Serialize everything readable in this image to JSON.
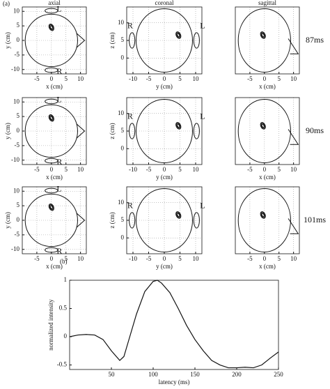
{
  "panels": {
    "a": "(a)",
    "b": "(b)"
  },
  "chart_data": [
    {
      "type": "axial-head",
      "title": "axial",
      "xlabel": "x (cm)",
      "ylabel": "y (cm)",
      "xlim": [
        -10,
        12
      ],
      "ylim": [
        -11.5,
        11.5
      ],
      "xticks": [
        -5,
        0,
        5,
        10
      ],
      "yticks": [
        -10,
        -5,
        0,
        5,
        10
      ],
      "marker_labels": [
        "L",
        "R"
      ],
      "x": [
        0
      ],
      "values": [
        4.5
      ]
    },
    {
      "type": "coronal-head",
      "title": "coronal",
      "xlabel": "y (cm)",
      "ylabel": "z (cm)",
      "xlim": [
        -12,
        12
      ],
      "ylim": [
        -4.5,
        14.5
      ],
      "xticks": [
        -10,
        -5,
        0,
        5,
        10
      ],
      "yticks": [
        0,
        5,
        10
      ],
      "marker_labels": [
        "L",
        "R"
      ],
      "x": [
        4.5
      ],
      "values": [
        6.5
      ]
    },
    {
      "type": "sagittal-head",
      "title": "sagittal",
      "xlabel": "x (cm)",
      "xlim": [
        -10,
        12
      ],
      "ylim": [
        -4.5,
        14.5
      ],
      "xticks": [
        -5,
        0,
        5,
        10
      ],
      "annotation": "87ms",
      "x": [
        -0.5
      ],
      "values": [
        6.5
      ]
    },
    {
      "type": "axial-head",
      "xlabel": "x (cm)",
      "ylabel": "y (cm)",
      "xlim": [
        -10,
        12
      ],
      "ylim": [
        -11.5,
        11.5
      ],
      "xticks": [
        -5,
        0,
        5,
        10
      ],
      "yticks": [
        -10,
        -5,
        0,
        5,
        10
      ],
      "marker_labels": [
        "L",
        "R"
      ],
      "x": [
        0
      ],
      "values": [
        4.5
      ]
    },
    {
      "type": "coronal-head",
      "xlabel": "y (cm)",
      "ylabel": "z (cm)",
      "xlim": [
        -12,
        12
      ],
      "ylim": [
        -4.5,
        14.5
      ],
      "xticks": [
        -10,
        -5,
        0,
        5,
        10
      ],
      "yticks": [
        0,
        5,
        10
      ],
      "marker_labels": [
        "L",
        "R"
      ],
      "x": [
        4.5
      ],
      "values": [
        6.5
      ]
    },
    {
      "type": "sagittal-head",
      "xlabel": "x (cm)",
      "xlim": [
        -10,
        12
      ],
      "ylim": [
        -4.5,
        14.5
      ],
      "xticks": [
        -5,
        0,
        5,
        10
      ],
      "annotation": "90ms",
      "x": [
        -0.5
      ],
      "values": [
        6.5
      ]
    },
    {
      "type": "axial-head",
      "xlabel": "x (cm)",
      "ylabel": "y (cm)",
      "xlim": [
        -10,
        12
      ],
      "ylim": [
        -11.5,
        11.5
      ],
      "xticks": [
        -5,
        0,
        5,
        10
      ],
      "yticks": [
        -10,
        -5,
        0,
        5,
        10
      ],
      "marker_labels": [
        "L",
        "R"
      ],
      "x": [
        0
      ],
      "values": [
        4.5
      ]
    },
    {
      "type": "coronal-head",
      "xlabel": "y (cm)",
      "ylabel": "z (cm)",
      "xlim": [
        -12,
        12
      ],
      "ylim": [
        -4.5,
        14.5
      ],
      "xticks": [
        -10,
        -5,
        0,
        5,
        10
      ],
      "yticks": [
        0,
        5,
        10
      ],
      "marker_labels": [
        "L",
        "R"
      ],
      "x": [
        4.5
      ],
      "values": [
        6.5
      ]
    },
    {
      "type": "sagittal-head",
      "xlabel": "x (cm)",
      "xlim": [
        -10,
        12
      ],
      "ylim": [
        -4.5,
        14.5
      ],
      "xticks": [
        -5,
        0,
        5,
        10
      ],
      "annotation": "101ms",
      "x": [
        -0.5
      ],
      "values": [
        6.5
      ]
    },
    {
      "type": "line",
      "xlabel": "latency (ms)",
      "ylabel": "normalized intensity",
      "xlim": [
        0,
        250
      ],
      "ylim": [
        -0.58,
        1
      ],
      "xticks": [
        50,
        100,
        150,
        200,
        250
      ],
      "yticks": [
        -0.5,
        0,
        0.5,
        1
      ],
      "color": "#111111",
      "x": [
        0,
        10,
        20,
        30,
        40,
        50,
        60,
        65,
        70,
        80,
        90,
        100,
        105,
        110,
        120,
        130,
        140,
        150,
        160,
        170,
        180,
        190,
        200,
        210,
        220,
        230,
        240,
        250
      ],
      "values": [
        0.0,
        0.03,
        0.04,
        0.03,
        -0.05,
        -0.25,
        -0.42,
        -0.35,
        -0.1,
        0.4,
        0.8,
        0.98,
        1.0,
        0.95,
        0.78,
        0.5,
        0.2,
        -0.05,
        -0.25,
        -0.42,
        -0.5,
        -0.55,
        -0.55,
        -0.54,
        -0.55,
        -0.5,
        -0.38,
        -0.27
      ]
    }
  ]
}
